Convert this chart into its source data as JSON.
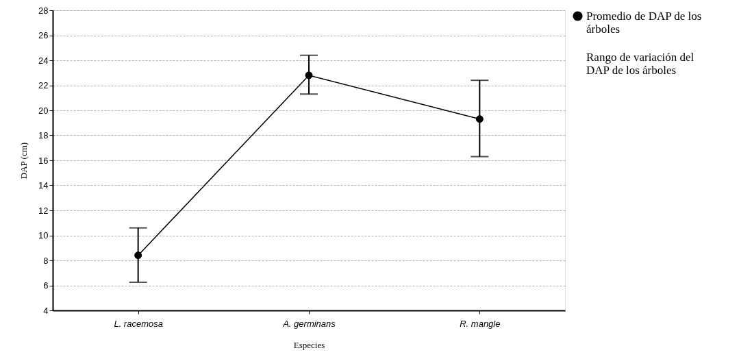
{
  "chart_data": {
    "type": "line",
    "xlabel": "Especies",
    "ylabel": "DAP (cm)",
    "categories": [
      "L. racemosa",
      "A. germinans",
      "R. mangle"
    ],
    "series": [
      {
        "name": "Promedio de DAP de los árboles",
        "color": "#000000",
        "values": [
          8.4,
          22.8,
          19.3
        ],
        "errors": [
          [
            6.25,
            10.6
          ],
          [
            21.3,
            24.4
          ],
          [
            16.3,
            22.4
          ]
        ]
      }
    ],
    "ylim": [
      4,
      28
    ],
    "yticks": [
      4,
      6,
      8,
      10,
      12,
      14,
      16,
      18,
      20,
      22,
      24,
      26,
      28
    ],
    "annotations": [
      "Rango de variación del DAP de los árboles"
    ],
    "grid": "y",
    "legend": "right",
    "marker": "circle",
    "line_style": "solid"
  }
}
